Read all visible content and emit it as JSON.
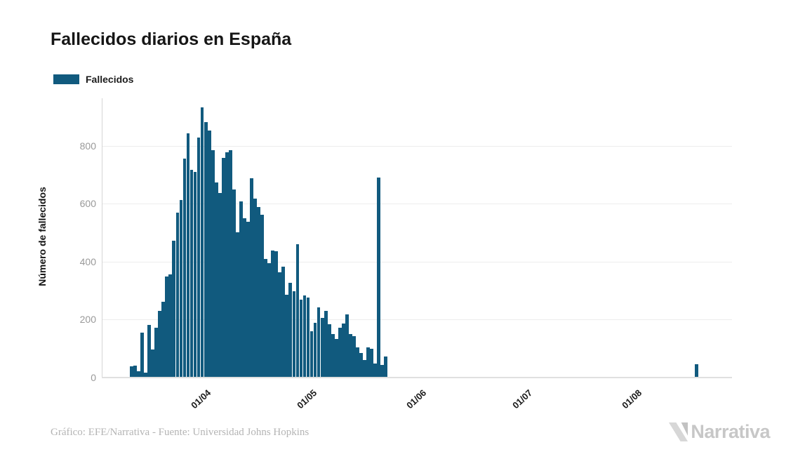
{
  "header": {
    "title": "Fallecidos diarios en España"
  },
  "legend": {
    "label": "Fallecidos",
    "swatch_color": "#115A7E"
  },
  "chart_data": {
    "type": "bar",
    "title": "Fallecidos diarios en España",
    "xlabel": "",
    "ylabel": "Número de fallecidos",
    "ylim": [
      0,
      950
    ],
    "grid": true,
    "legend_position": "top-left",
    "y_ticks": [
      0,
      200,
      400,
      600,
      800
    ],
    "x_ticks": [
      "01/04",
      "01/05",
      "01/06",
      "01/07",
      "01/08"
    ],
    "series": [
      {
        "name": "Fallecidos",
        "color": "#115A7E",
        "points": [
          [
            "13/03",
            37
          ],
          [
            "14/03",
            40
          ],
          [
            "15/03",
            20
          ],
          [
            "16/03",
            153
          ],
          [
            "17/03",
            14
          ],
          [
            "18/03",
            180
          ],
          [
            "19/03",
            95
          ],
          [
            "20/03",
            171
          ],
          [
            "21/03",
            229
          ],
          [
            "22/03",
            261
          ],
          [
            "23/03",
            346
          ],
          [
            "24/03",
            354
          ],
          [
            "25/03",
            470
          ],
          [
            "26/03",
            568
          ],
          [
            "27/03",
            612
          ],
          [
            "28/03",
            754
          ],
          [
            "29/03",
            842
          ],
          [
            "30/03",
            717
          ],
          [
            "31/03",
            710
          ],
          [
            "01/04",
            827
          ],
          [
            "02/04",
            932
          ],
          [
            "03/04",
            880
          ],
          [
            "04/04",
            851
          ],
          [
            "05/04",
            783
          ],
          [
            "06/04",
            673
          ],
          [
            "07/04",
            637
          ],
          [
            "08/04",
            758
          ],
          [
            "09/04",
            777
          ],
          [
            "10/04",
            783
          ],
          [
            "11/04",
            649
          ],
          [
            "12/04",
            499
          ],
          [
            "13/04",
            608
          ],
          [
            "14/04",
            548
          ],
          [
            "15/04",
            536
          ],
          [
            "16/04",
            686
          ],
          [
            "17/04",
            617
          ],
          [
            "18/04",
            588
          ],
          [
            "19/04",
            560
          ],
          [
            "20/04",
            407
          ],
          [
            "21/04",
            394
          ],
          [
            "22/04",
            438
          ],
          [
            "23/04",
            435
          ],
          [
            "24/04",
            362
          ],
          [
            "25/04",
            382
          ],
          [
            "26/04",
            285
          ],
          [
            "27/04",
            326
          ],
          [
            "28/04",
            297
          ],
          [
            "29/04",
            459
          ],
          [
            "30/04",
            266
          ],
          [
            "01/05",
            281
          ],
          [
            "02/05",
            275
          ],
          [
            "03/05",
            159
          ],
          [
            "04/05",
            188
          ],
          [
            "05/05",
            241
          ],
          [
            "06/05",
            205
          ],
          [
            "07/05",
            229
          ],
          [
            "08/05",
            181
          ],
          [
            "09/05",
            147
          ],
          [
            "10/05",
            130
          ],
          [
            "11/05",
            171
          ],
          [
            "12/05",
            184
          ],
          [
            "13/05",
            217
          ],
          [
            "14/05",
            147
          ],
          [
            "15/05",
            141
          ],
          [
            "16/05",
            103
          ],
          [
            "17/05",
            83
          ],
          [
            "18/05",
            59
          ],
          [
            "19/05",
            103
          ],
          [
            "20/05",
            96
          ],
          [
            "21/05",
            47
          ],
          [
            "22/05",
            690
          ],
          [
            "23/05",
            42
          ],
          [
            "24/05",
            71
          ],
          [
            "20/08",
            45
          ]
        ]
      }
    ]
  },
  "footer": {
    "credit": "Gráfico: EFE/Narrativa - Fuente: Universidad Johns Hopkins"
  },
  "branding": {
    "logo_text": "Narrativa"
  }
}
